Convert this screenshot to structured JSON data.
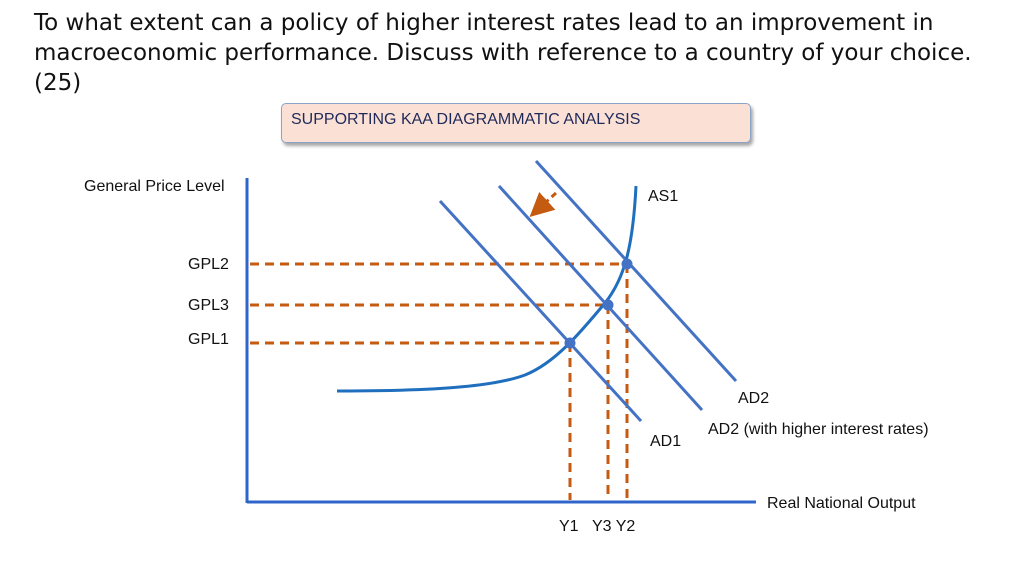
{
  "question": "To what extent can a policy of higher interest rates lead to an improvement in macroeconomic performance. Discuss with reference to a country of your choice. (25)",
  "heading_box": "SUPPORTING KAA DIAGRAMMATIC ANALYSIS",
  "axes": {
    "y_label": "General Price Level",
    "x_label": "Real National Output"
  },
  "price_levels": [
    "GPL2",
    "GPL3",
    "GPL1"
  ],
  "output_levels": [
    "Y1",
    "Y3 Y2"
  ],
  "curves": {
    "as": "AS1",
    "ad1": "AD1",
    "ad2": "AD2",
    "ad2_higher": "AD2 (with higher interest rates)"
  },
  "colors": {
    "axis": "#2f64c9",
    "ad_lines": "#4472c4",
    "as_curve": "#1f6fbe",
    "dashed": "#c55a11",
    "points": "#4472c4",
    "box_fill": "#fbe0d6",
    "box_border": "#8aa4c8"
  }
}
